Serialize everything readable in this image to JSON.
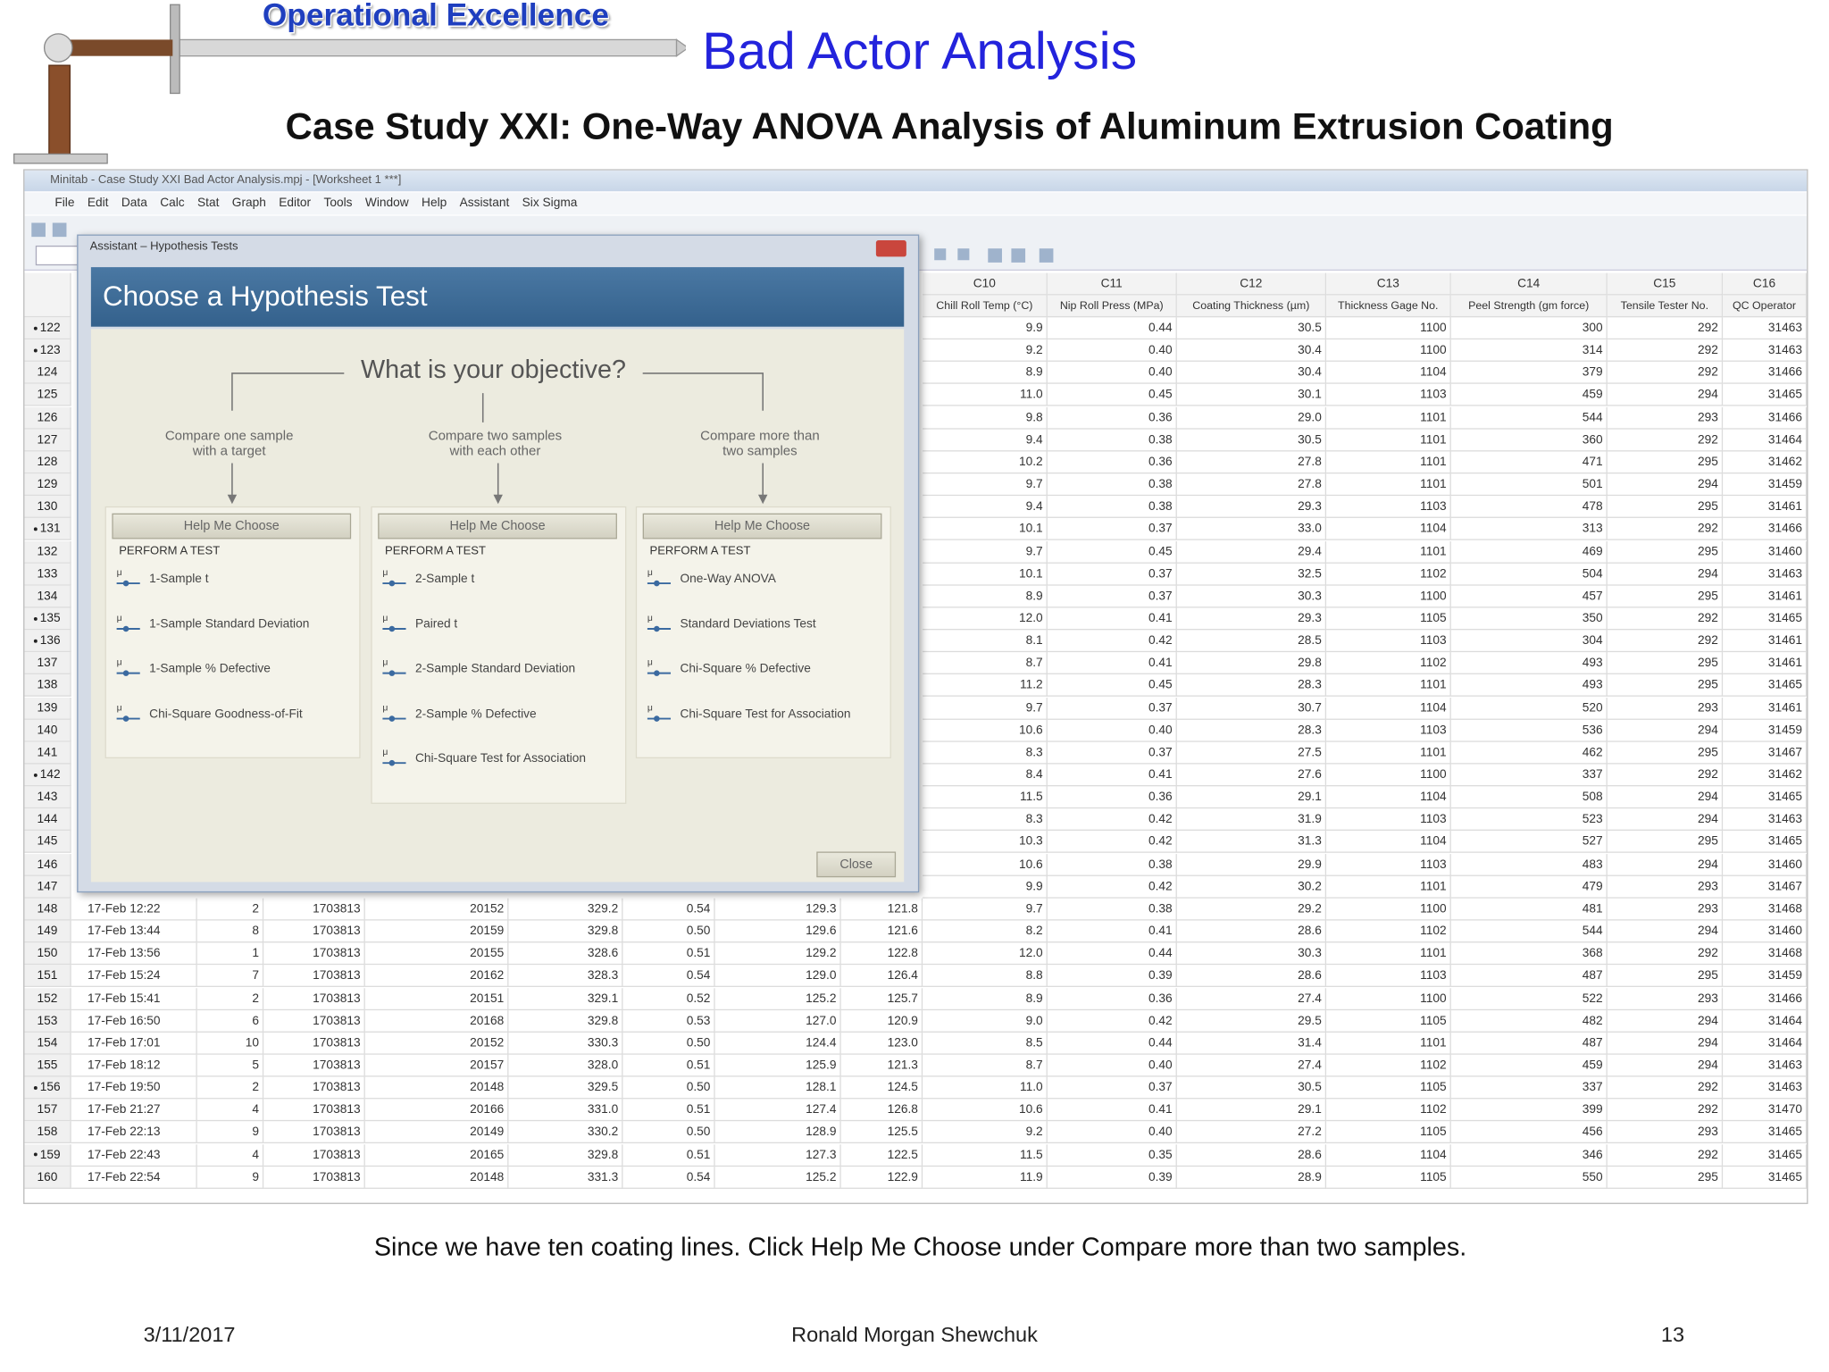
{
  "slide": {
    "brand": "Operational Excellence",
    "title": "Bad Actor Analysis",
    "subtitle": "Case Study XXI:  One-Way ANOVA Analysis of Aluminum Extrusion Coating",
    "caption": "Since we have ten coating lines.  Click Help Me Choose under Compare more than two samples.",
    "footer": {
      "date": "3/11/2017",
      "author": "Ronald Morgan Shewchuk",
      "page": "13"
    }
  },
  "window": {
    "title": "Minitab - Case Study XXI Bad Actor Analysis.mpj - [Worksheet 1 ***]",
    "menu": [
      "File",
      "Edit",
      "Data",
      "Calc",
      "Stat",
      "Graph",
      "Editor",
      "Tools",
      "Window",
      "Help",
      "Assistant",
      "Six Sigma"
    ]
  },
  "worksheet": {
    "columns": [
      {
        "id": "C10",
        "name": "Chill Roll Temp (°C)"
      },
      {
        "id": "C11",
        "name": "Nip Roll Press (MPa)"
      },
      {
        "id": "C12",
        "name": "Coating Thickness (µm)"
      },
      {
        "id": "C13",
        "name": "Thickness Gage No."
      },
      {
        "id": "C14",
        "name": "Peel Strength (gm force)"
      },
      {
        "id": "C15",
        "name": "Tensile Tester No."
      },
      {
        "id": "C16",
        "name": "QC Operator"
      }
    ],
    "rows": [
      {
        "row": "122",
        "flagged": true,
        "cells": [
          "9.9",
          "0.44",
          "30.5",
          "1100",
          "300",
          "292",
          "31463"
        ]
      },
      {
        "row": "123",
        "flagged": true,
        "cells": [
          "9.2",
          "0.40",
          "30.4",
          "1100",
          "314",
          "292",
          "31463"
        ]
      },
      {
        "row": "124",
        "flagged": false,
        "cells": [
          "8.9",
          "0.40",
          "30.4",
          "1104",
          "379",
          "292",
          "31466"
        ]
      },
      {
        "row": "125",
        "flagged": false,
        "cells": [
          "11.0",
          "0.45",
          "30.1",
          "1103",
          "459",
          "294",
          "31465"
        ]
      },
      {
        "row": "126",
        "flagged": false,
        "cells": [
          "9.8",
          "0.36",
          "29.0",
          "1101",
          "544",
          "293",
          "31466"
        ]
      },
      {
        "row": "127",
        "flagged": false,
        "cells": [
          "9.4",
          "0.38",
          "30.5",
          "1101",
          "360",
          "292",
          "31464"
        ]
      },
      {
        "row": "128",
        "flagged": false,
        "cells": [
          "10.2",
          "0.36",
          "27.8",
          "1101",
          "471",
          "295",
          "31462"
        ]
      },
      {
        "row": "129",
        "flagged": false,
        "cells": [
          "9.7",
          "0.38",
          "27.8",
          "1101",
          "501",
          "294",
          "31459"
        ]
      },
      {
        "row": "130",
        "flagged": false,
        "cells": [
          "9.4",
          "0.38",
          "29.3",
          "1103",
          "478",
          "295",
          "31461"
        ]
      },
      {
        "row": "131",
        "flagged": true,
        "cells": [
          "10.1",
          "0.37",
          "33.0",
          "1104",
          "313",
          "292",
          "31466"
        ]
      },
      {
        "row": "132",
        "flagged": false,
        "cells": [
          "9.7",
          "0.45",
          "29.4",
          "1101",
          "469",
          "295",
          "31460"
        ]
      },
      {
        "row": "133",
        "flagged": false,
        "cells": [
          "10.1",
          "0.37",
          "32.5",
          "1102",
          "504",
          "294",
          "31463"
        ]
      },
      {
        "row": "134",
        "flagged": false,
        "cells": [
          "8.9",
          "0.37",
          "30.3",
          "1100",
          "457",
          "295",
          "31461"
        ]
      },
      {
        "row": "135",
        "flagged": true,
        "cells": [
          "12.0",
          "0.41",
          "29.3",
          "1105",
          "350",
          "292",
          "31465"
        ]
      },
      {
        "row": "136",
        "flagged": true,
        "cells": [
          "8.1",
          "0.42",
          "28.5",
          "1103",
          "304",
          "292",
          "31461"
        ]
      },
      {
        "row": "137",
        "flagged": false,
        "cells": [
          "8.7",
          "0.41",
          "29.8",
          "1102",
          "493",
          "295",
          "31461"
        ]
      },
      {
        "row": "138",
        "flagged": false,
        "cells": [
          "11.2",
          "0.45",
          "28.3",
          "1101",
          "493",
          "295",
          "31465"
        ]
      },
      {
        "row": "139",
        "flagged": false,
        "cells": [
          "9.7",
          "0.37",
          "30.7",
          "1104",
          "520",
          "293",
          "31461"
        ]
      },
      {
        "row": "140",
        "flagged": false,
        "cells": [
          "10.6",
          "0.40",
          "28.3",
          "1103",
          "536",
          "294",
          "31459"
        ]
      },
      {
        "row": "141",
        "flagged": false,
        "cells": [
          "8.3",
          "0.37",
          "27.5",
          "1101",
          "462",
          "295",
          "31467"
        ]
      },
      {
        "row": "142",
        "flagged": true,
        "cells": [
          "8.4",
          "0.41",
          "27.6",
          "1100",
          "337",
          "292",
          "31462"
        ]
      },
      {
        "row": "143",
        "flagged": false,
        "cells": [
          "11.5",
          "0.36",
          "29.1",
          "1104",
          "508",
          "294",
          "31465"
        ]
      },
      {
        "row": "144",
        "flagged": false,
        "cells": [
          "8.3",
          "0.42",
          "31.9",
          "1103",
          "523",
          "294",
          "31463"
        ]
      },
      {
        "row": "145",
        "flagged": false,
        "cells": [
          "10.3",
          "0.42",
          "31.3",
          "1104",
          "527",
          "295",
          "31465"
        ]
      },
      {
        "row": "146",
        "flagged": false,
        "cells": [
          "10.6",
          "0.38",
          "29.9",
          "1103",
          "483",
          "294",
          "31460"
        ]
      },
      {
        "row": "147",
        "flagged": false,
        "cells": [
          "9.9",
          "0.42",
          "30.2",
          "1101",
          "479",
          "293",
          "31467"
        ]
      },
      {
        "row": "148",
        "flagged": false,
        "left": [
          "17-Feb 12:22",
          "2",
          "1703813",
          "20152",
          "329.2",
          "0.54",
          "129.3",
          "121.8"
        ],
        "cells": [
          "9.7",
          "0.38",
          "29.2",
          "1100",
          "481",
          "293",
          "31468"
        ]
      },
      {
        "row": "149",
        "flagged": false,
        "left": [
          "17-Feb 13:44",
          "8",
          "1703813",
          "20159",
          "329.8",
          "0.50",
          "129.6",
          "121.6"
        ],
        "cells": [
          "8.2",
          "0.41",
          "28.6",
          "1102",
          "544",
          "294",
          "31460"
        ]
      },
      {
        "row": "150",
        "flagged": false,
        "left": [
          "17-Feb 13:56",
          "1",
          "1703813",
          "20155",
          "328.6",
          "0.51",
          "129.2",
          "122.8"
        ],
        "cells": [
          "12.0",
          "0.44",
          "30.3",
          "1101",
          "368",
          "292",
          "31468"
        ]
      },
      {
        "row": "151",
        "flagged": false,
        "left": [
          "17-Feb 15:24",
          "7",
          "1703813",
          "20162",
          "328.3",
          "0.54",
          "129.0",
          "126.4"
        ],
        "cells": [
          "8.8",
          "0.39",
          "28.6",
          "1103",
          "487",
          "295",
          "31459"
        ]
      },
      {
        "row": "152",
        "flagged": false,
        "left": [
          "17-Feb 15:41",
          "2",
          "1703813",
          "20151",
          "329.1",
          "0.52",
          "125.2",
          "125.7"
        ],
        "cells": [
          "8.9",
          "0.36",
          "27.4",
          "1100",
          "522",
          "293",
          "31466"
        ]
      },
      {
        "row": "153",
        "flagged": false,
        "left": [
          "17-Feb 16:50",
          "6",
          "1703813",
          "20168",
          "329.8",
          "0.53",
          "127.0",
          "120.9"
        ],
        "cells": [
          "9.0",
          "0.42",
          "29.5",
          "1105",
          "482",
          "294",
          "31464"
        ]
      },
      {
        "row": "154",
        "flagged": false,
        "left": [
          "17-Feb 17:01",
          "10",
          "1703813",
          "20152",
          "330.3",
          "0.50",
          "124.4",
          "123.0"
        ],
        "cells": [
          "8.5",
          "0.44",
          "31.4",
          "1101",
          "487",
          "294",
          "31464"
        ]
      },
      {
        "row": "155",
        "flagged": false,
        "left": [
          "17-Feb 18:12",
          "5",
          "1703813",
          "20157",
          "328.0",
          "0.51",
          "125.9",
          "121.3"
        ],
        "cells": [
          "8.7",
          "0.40",
          "27.4",
          "1102",
          "459",
          "294",
          "31463"
        ]
      },
      {
        "row": "156",
        "flagged": true,
        "left": [
          "17-Feb 19:50",
          "2",
          "1703813",
          "20148",
          "329.5",
          "0.50",
          "128.1",
          "124.5"
        ],
        "cells": [
          "11.0",
          "0.37",
          "30.5",
          "1105",
          "337",
          "292",
          "31463"
        ]
      },
      {
        "row": "157",
        "flagged": false,
        "left": [
          "17-Feb 21:27",
          "4",
          "1703813",
          "20166",
          "331.0",
          "0.51",
          "127.4",
          "126.8"
        ],
        "cells": [
          "10.6",
          "0.41",
          "29.1",
          "1102",
          "399",
          "292",
          "31470"
        ]
      },
      {
        "row": "158",
        "flagged": false,
        "left": [
          "17-Feb 22:13",
          "9",
          "1703813",
          "20149",
          "330.2",
          "0.50",
          "128.9",
          "125.5"
        ],
        "cells": [
          "9.2",
          "0.40",
          "27.2",
          "1105",
          "456",
          "293",
          "31465"
        ]
      },
      {
        "row": "159",
        "flagged": true,
        "left": [
          "17-Feb 22:43",
          "4",
          "1703813",
          "20165",
          "329.8",
          "0.51",
          "127.3",
          "122.5"
        ],
        "cells": [
          "11.5",
          "0.35",
          "28.6",
          "1104",
          "346",
          "292",
          "31465"
        ]
      },
      {
        "row": "160",
        "flagged": false,
        "left": [
          "17-Feb 22:54",
          "9",
          "1703813",
          "20148",
          "331.3",
          "0.54",
          "125.2",
          "122.9"
        ],
        "cells": [
          "11.9",
          "0.39",
          "28.9",
          "1105",
          "550",
          "295",
          "31465"
        ]
      }
    ]
  },
  "dialog": {
    "title": "Assistant – Hypothesis Tests",
    "heading": "Choose a Hypothesis Test",
    "question": "What is your objective?",
    "groups": [
      {
        "objective": [
          "Compare one sample",
          "with a target"
        ],
        "button": "Help Me Choose",
        "section": "PERFORM A TEST",
        "tests": [
          "1-Sample t",
          "1-Sample Standard Deviation",
          "1-Sample % Defective",
          "Chi-Square Goodness-of-Fit"
        ]
      },
      {
        "objective": [
          "Compare two samples",
          "with each other"
        ],
        "button": "Help Me Choose",
        "section": "PERFORM A TEST",
        "tests": [
          "2-Sample t",
          "Paired t",
          "2-Sample Standard Deviation",
          "2-Sample % Defective",
          "Chi-Square Test for Association"
        ]
      },
      {
        "objective": [
          "Compare more than",
          "two samples"
        ],
        "button": "Help Me Choose",
        "section": "PERFORM A TEST",
        "tests": [
          "One-Way ANOVA",
          "Standard Deviations Test",
          "Chi-Square % Defective",
          "Chi-Square Test for Association"
        ]
      }
    ],
    "close": "Close"
  }
}
